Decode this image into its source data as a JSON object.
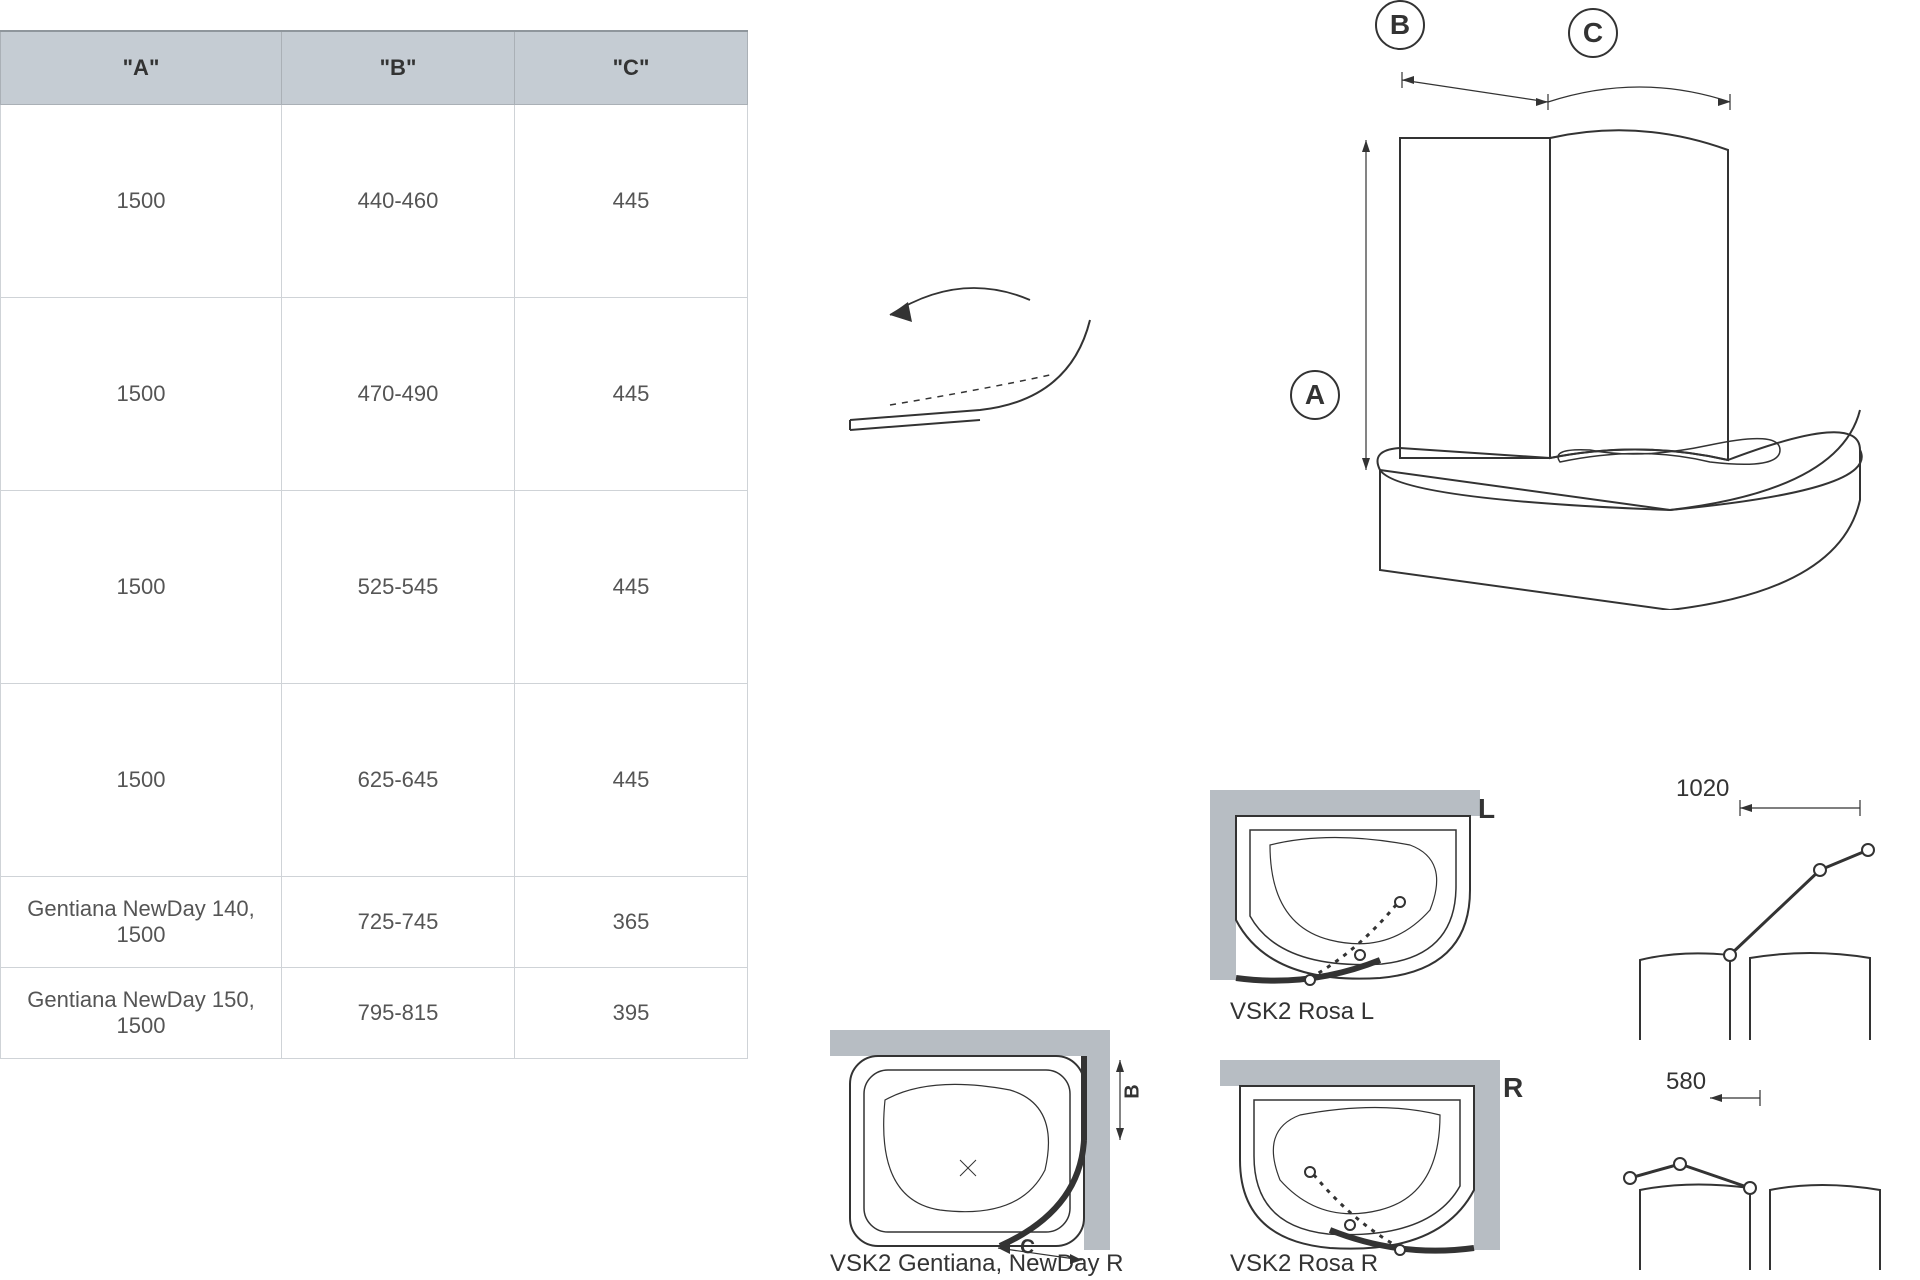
{
  "table": {
    "header_bg": "#c5ccd3",
    "headers": [
      "\"A\"",
      "\"B\"",
      "\"C\""
    ],
    "rows": [
      {
        "a": "1500",
        "b": "440-460",
        "c": "445",
        "tall": true
      },
      {
        "a": "1500",
        "b": "470-490",
        "c": "445",
        "tall": true
      },
      {
        "a": "1500",
        "b": "525-545",
        "c": "445",
        "tall": true
      },
      {
        "a": "1500",
        "b": "625-645",
        "c": "445",
        "tall": true
      },
      {
        "a": "Gentiana NewDay 140, 1500",
        "b": "725-745",
        "c": "365",
        "tall": false
      },
      {
        "a": "Gentiana NewDay 150, 1500",
        "b": "795-815",
        "c": "395",
        "tall": false
      }
    ]
  },
  "labels": {
    "A": "A",
    "B": "B",
    "C": "C",
    "L": "L",
    "R": "R",
    "rosa_l": "VSK2 Rosa L",
    "rosa_r": "VSK2 Rosa R",
    "gentiana_r": "VSK2 Gentiana, NewDay R",
    "dim_1020": "1020",
    "dim_580": "580",
    "dim_b_small": "B",
    "dim_c_small": "C"
  },
  "colors": {
    "stroke": "#333333",
    "wall_fill": "#b7bdc3",
    "bg": "#ffffff",
    "table_border": "#cfd3d7"
  },
  "style": {
    "main_stroke_w": 2,
    "thin_stroke_w": 1.2,
    "font_body": 22,
    "font_label": 28,
    "font_caption": 24
  }
}
